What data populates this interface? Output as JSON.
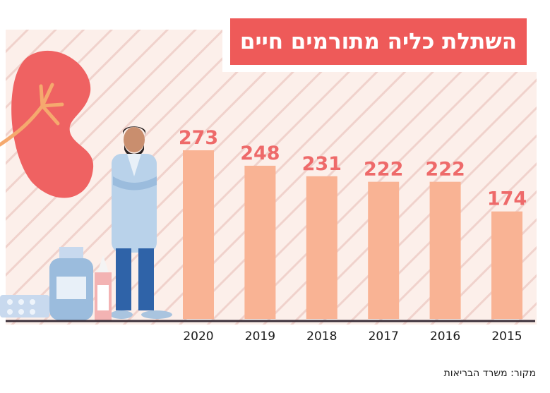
{
  "title": "השתלת כליה מתורמים חיים",
  "source": "מקור: משרד הבריאות",
  "colors": {
    "bar": "#f9b394",
    "value_label": "#ee6a6a",
    "title_bg": "#ee5a59",
    "background": "#fcefea",
    "stripes": "#f0d2cc",
    "baseline": "#3a2f3a"
  },
  "chart_data": {
    "type": "bar",
    "title": "השתלת כליה מתורמים חיים",
    "categories": [
      "2020",
      "2019",
      "2018",
      "2017",
      "2016",
      "2015"
    ],
    "values": [
      273,
      248,
      231,
      222,
      222,
      174
    ],
    "xlabel": "",
    "ylabel": "",
    "ylim": [
      0,
      280
    ],
    "grid": false,
    "legend": "none"
  }
}
